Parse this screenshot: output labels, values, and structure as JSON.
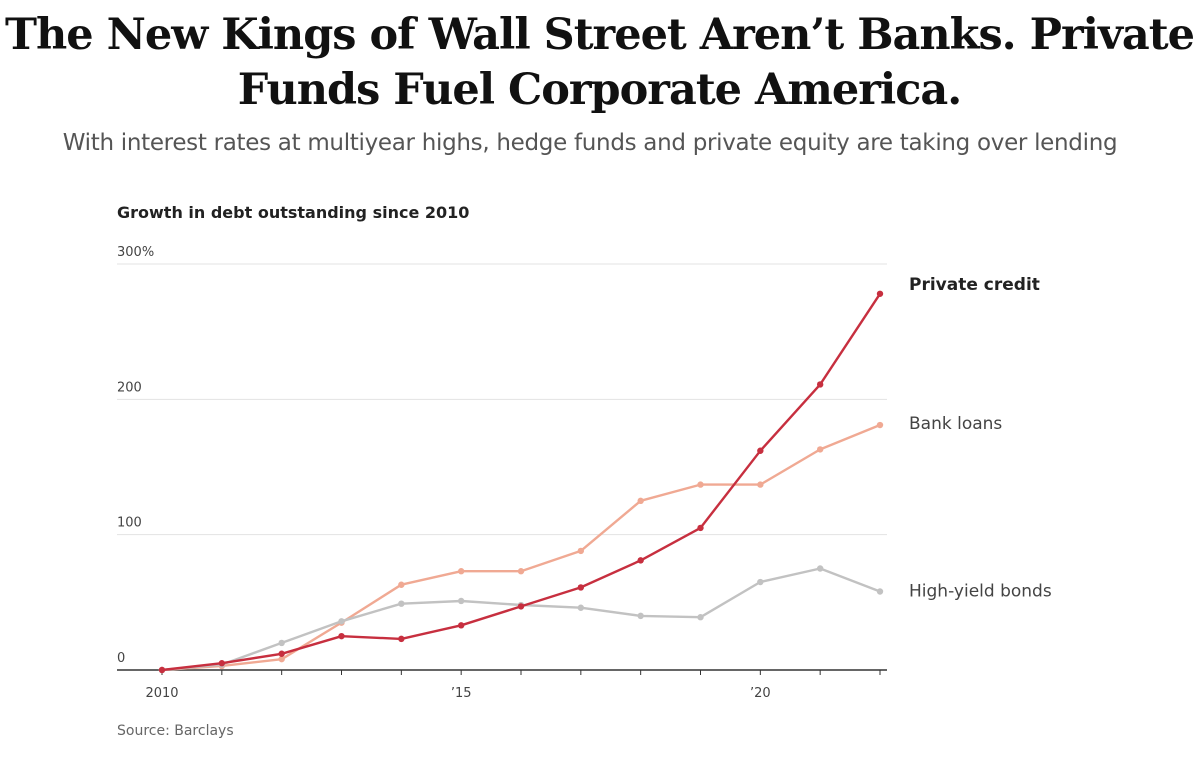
{
  "headline": "The New Kings of Wall Street Aren’t Banks. Private Funds Fuel Corporate America.",
  "subheadline": "With interest rates at multiyear highs, hedge funds and private equity are taking over lending",
  "source": "Source: Barclays",
  "chart_data": {
    "type": "line",
    "title": "Growth in debt outstanding since 2010",
    "xlabel": "",
    "ylabel": "",
    "x": [
      2010,
      2011,
      2012,
      2013,
      2014,
      2015,
      2016,
      2017,
      2018,
      2019,
      2020,
      2021,
      2022
    ],
    "xlim": [
      2010,
      2022
    ],
    "ylim": [
      0,
      300
    ],
    "y_ticks": [
      {
        "value": 0,
        "label": "0"
      },
      {
        "value": 100,
        "label": "100"
      },
      {
        "value": 200,
        "label": "200"
      },
      {
        "value": 300,
        "label": "300%"
      }
    ],
    "x_ticks": [
      {
        "value": 2010,
        "label": "2010"
      },
      {
        "value": 2015,
        "label": "’15"
      },
      {
        "value": 2020,
        "label": "’20"
      }
    ],
    "grid": true,
    "legend": "direct labels at line ends",
    "series": [
      {
        "name": "Private credit",
        "color": "#c72f3f",
        "emphasis": true,
        "values": [
          0,
          5,
          12,
          25,
          23,
          33,
          47,
          61,
          81,
          105,
          162,
          211,
          278
        ]
      },
      {
        "name": "Bank loans",
        "color": "#f0a993",
        "emphasis": false,
        "values": [
          0,
          3,
          8,
          35,
          63,
          73,
          73,
          88,
          125,
          137,
          137,
          163,
          181
        ]
      },
      {
        "name": "High-yield bonds",
        "color": "#c2c2c2",
        "emphasis": false,
        "values": [
          0,
          4,
          20,
          36,
          49,
          51,
          48,
          46,
          40,
          39,
          65,
          75,
          58
        ]
      }
    ]
  }
}
